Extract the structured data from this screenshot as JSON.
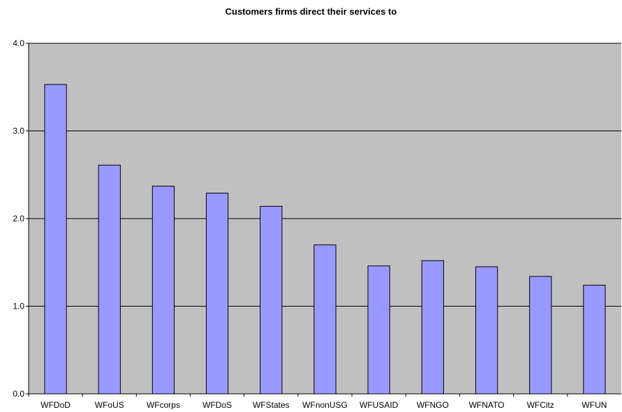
{
  "chart_data": {
    "type": "bar",
    "title": "Customers firms direct their services to",
    "xlabel": "",
    "ylabel": "",
    "categories": [
      "WFDoD",
      "WFoUS",
      "WFcorps",
      "WFDoS",
      "WFStates",
      "WFnonUSG",
      "WFUSAID",
      "WFNGO",
      "WFNATO",
      "WFCitz",
      "WFUN"
    ],
    "values": [
      3.53,
      2.61,
      2.37,
      2.29,
      2.14,
      1.7,
      1.46,
      1.52,
      1.45,
      1.34,
      1.24
    ],
    "ylim": [
      0,
      4
    ],
    "yticks": [
      "0.0",
      "1.0",
      "2.0",
      "3.0",
      "4.0"
    ],
    "grid": true,
    "legend": "none",
    "colors": {
      "plot_background": "#c0c0c0",
      "bar_fill": "#9999ff",
      "bar_stroke": "#000000",
      "gridline": "#000000"
    }
  }
}
